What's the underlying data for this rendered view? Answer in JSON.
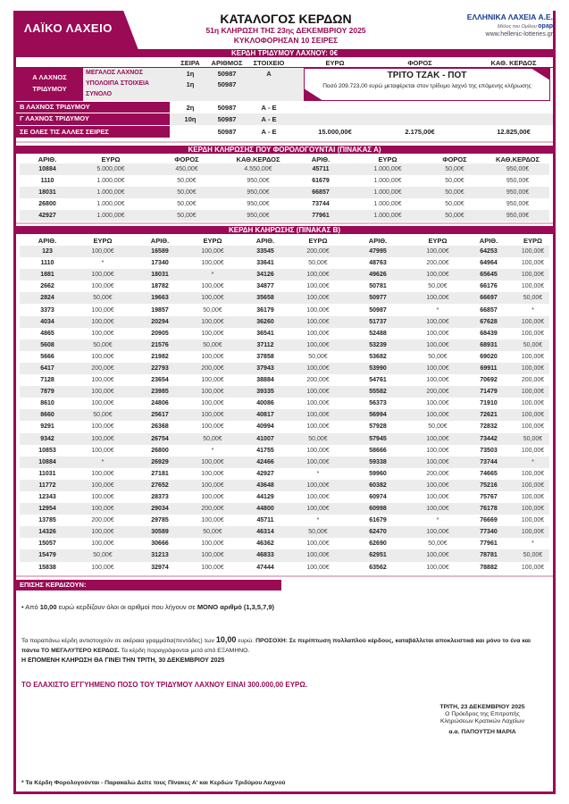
{
  "header": {
    "logo": "ΛΑΪΚΟ ΛΑΧΕΙΟ",
    "title": "ΚΑΤΑΛΟΓΟΣ ΚΕΡΔΩΝ",
    "draw": "51η ΚΛΗΡΩΣΗ ΤΗΣ 23ης ΔΕΚΕΜΒΡΙΟΥ 2025",
    "series": "ΚΥΚΛΟΦΟΡΗΣΑΝ 10 ΣΕΙΡΕΣ",
    "brand": "ΕΛΛΗΝΙΚΑ ΛΑΧΕΙΑ Α.Ε.",
    "brand_member": "Μέλος του Ομίλου",
    "brand_opap": "opap",
    "website": "www.hellenic-lotteries.gr"
  },
  "colors": {
    "accent": "#9a0a55",
    "row_alt": "#ececec"
  },
  "triplet": {
    "bar": "ΚΕΡΔΗ ΤΡΙΔΥΜΟΥ ΛΑΧΝΟΥ: 0€",
    "columns": [
      "ΣΕΙΡΑ",
      "ΑΡΙΘΜΟΣ",
      "ΣΤΟΙΧΕΙΟ",
      "ΕΥΡΩ",
      "ΦΟΡΟΣ",
      "ΚΑΘ. ΚΕΡΔΟΣ"
    ],
    "a_label": "Α ΛΑΧΝΟΣ ΤΡΙΔΥΜΟΥ",
    "a_rows": [
      {
        "label": "ΜΕΓΑΛΟΣ ΛΑΧΝΟΣ",
        "series": "1η",
        "number": "50987",
        "element": "Α"
      },
      {
        "label": "ΥΠΟΛΟΙΠΑ ΣΤΟΙΧΕΙΑ",
        "series": "1η",
        "number": "50987",
        "element": ""
      },
      {
        "label": "ΣΥΝΟΛΟ",
        "series": "",
        "number": "",
        "element": ""
      }
    ],
    "jackpot_title": "ΤΡΙΤΟ ΤΖΑΚ - ΠΟΤ",
    "jackpot_text": "Ποσό 209.723,00 ευρώ μεταφέρεται στον τρίδυμο λαχνό της επόμενης κλήρωσης",
    "b": {
      "label": "Β ΛΑΧΝΟΣ ΤΡΙΔΥΜΟΥ",
      "series": "2η",
      "number": "50987",
      "element": "Α - Ε"
    },
    "c": {
      "label": "Γ ΛΑΧΝΟΣ ΤΡΙΔΥΜΟΥ",
      "series": "10η",
      "number": "50987",
      "element": "Α - Ε"
    },
    "all": {
      "label": "ΣΕ ΟΛΕΣ ΤΙΣ ΑΛΛΕΣ ΣΕΙΡΕΣ",
      "series": "",
      "number": "50987",
      "element": "Α - Ε",
      "euro": "15.000,00€",
      "tax": "2.175,00€",
      "net": "12.825,00€"
    }
  },
  "table_a": {
    "title": "ΚΕΡΔΗ ΚΛΗΡΩΣΗΣ ΠΟΥ ΦΟΡΟΛΟΓΟΥΝΤΑΙ (ΠΙΝΑΚΑΣ Α)",
    "columns": [
      "ΑΡΙΘ.",
      "ΕΥΡΩ",
      "ΦΟΡΟΣ",
      "ΚΑΘ.ΚΕΡΔΟΣ",
      "ΑΡΙΘ.",
      "ΕΥΡΩ",
      "ΦΟΡΟΣ",
      "ΚΑΘ.ΚΕΡΔΟΣ"
    ],
    "rows": [
      [
        "10884",
        "5.000,00€",
        "450,00€",
        "4.550,00€",
        "45711",
        "1.000,00€",
        "50,00€",
        "950,00€"
      ],
      [
        "1110",
        "1.000,00€",
        "50,00€",
        "950,00€",
        "61679",
        "1.000,00€",
        "50,00€",
        "950,00€"
      ],
      [
        "18031",
        "1.000,00€",
        "50,00€",
        "950,00€",
        "66857",
        "1.000,00€",
        "50,00€",
        "950,00€"
      ],
      [
        "26800",
        "1.000,00€",
        "50,00€",
        "950,00€",
        "73744",
        "1.000,00€",
        "50,00€",
        "950,00€"
      ],
      [
        "42927",
        "1.000,00€",
        "50,00€",
        "950,00€",
        "77961",
        "1.000,00€",
        "50,00€",
        "950,00€"
      ]
    ]
  },
  "table_b": {
    "title": "ΚΕΡΔΗ ΚΛΗΡΩΣΗΣ (ΠΙΝΑΚΑΣ Β)",
    "columns": [
      "ΑΡΙΘ.",
      "ΕΥΡΩ",
      "ΑΡΙΘ.",
      "ΕΥΡΩ",
      "ΑΡΙΘ.",
      "ΕΥΡΩ",
      "ΑΡΙΘ.",
      "ΕΥΡΩ",
      "ΑΡΙΘ.",
      "ΕΥΡΩ"
    ],
    "rows": [
      [
        "123",
        "100,00€",
        "16589",
        "100,00€",
        "33545",
        "200,00€",
        "47995",
        "100,00€",
        "64253",
        "100,00€"
      ],
      [
        "1110",
        "*",
        "17340",
        "100,00€",
        "33641",
        "50,00€",
        "48763",
        "200,00€",
        "64964",
        "100,00€"
      ],
      [
        "1881",
        "100,00€",
        "18031",
        "*",
        "34126",
        "100,00€",
        "49626",
        "100,00€",
        "65645",
        "100,00€"
      ],
      [
        "2662",
        "100,00€",
        "18782",
        "100,00€",
        "34877",
        "100,00€",
        "50781",
        "50,00€",
        "66176",
        "100,00€"
      ],
      [
        "2824",
        "50,00€",
        "19663",
        "100,00€",
        "35658",
        "100,00€",
        "50977",
        "100,00€",
        "66697",
        "50,00€"
      ],
      [
        "3373",
        "100,00€",
        "19857",
        "50,00€",
        "36179",
        "100,00€",
        "50987",
        "*",
        "66857",
        "*"
      ],
      [
        "4034",
        "100,00€",
        "20294",
        "100,00€",
        "36260",
        "100,00€",
        "51737",
        "100,00€",
        "67628",
        "100,00€"
      ],
      [
        "4865",
        "100,00€",
        "20905",
        "100,00€",
        "36541",
        "100,00€",
        "52488",
        "100,00€",
        "68439",
        "100,00€"
      ],
      [
        "5608",
        "50,00€",
        "21576",
        "50,00€",
        "37112",
        "100,00€",
        "53239",
        "100,00€",
        "68931",
        "50,00€"
      ],
      [
        "5666",
        "100,00€",
        "21982",
        "100,00€",
        "37858",
        "50,00€",
        "53682",
        "50,00€",
        "69020",
        "100,00€"
      ],
      [
        "6417",
        "200,00€",
        "22793",
        "200,00€",
        "37943",
        "100,00€",
        "53990",
        "100,00€",
        "69911",
        "100,00€"
      ],
      [
        "7128",
        "100,00€",
        "23654",
        "100,00€",
        "38884",
        "200,00€",
        "54761",
        "100,00€",
        "70692",
        "200,00€"
      ],
      [
        "7879",
        "100,00€",
        "23985",
        "100,00€",
        "39335",
        "100,00€",
        "55582",
        "200,00€",
        "71479",
        "100,00€"
      ],
      [
        "8610",
        "100,00€",
        "24806",
        "100,00€",
        "40086",
        "100,00€",
        "56373",
        "100,00€",
        "71910",
        "100,00€"
      ],
      [
        "8660",
        "50,00€",
        "25617",
        "100,00€",
        "40817",
        "100,00€",
        "56994",
        "100,00€",
        "72621",
        "100,00€"
      ],
      [
        "9291",
        "100,00€",
        "26368",
        "100,00€",
        "40994",
        "100,00€",
        "57928",
        "50,00€",
        "72832",
        "100,00€"
      ],
      [
        "9342",
        "100,00€",
        "26754",
        "50,00€",
        "41007",
        "50,00€",
        "57945",
        "100,00€",
        "73442",
        "50,00€"
      ],
      [
        "10853",
        "100,00€",
        "26800",
        "*",
        "41755",
        "100,00€",
        "58666",
        "100,00€",
        "73503",
        "100,00€"
      ],
      [
        "10884",
        "*",
        "26929",
        "100,00€",
        "42466",
        "100,00€",
        "59338",
        "100,00€",
        "73744",
        "*"
      ],
      [
        "11031",
        "100,00€",
        "27181",
        "100,00€",
        "42927",
        "*",
        "59960",
        "200,00€",
        "74665",
        "100,00€"
      ],
      [
        "11772",
        "100,00€",
        "27652",
        "100,00€",
        "43648",
        "100,00€",
        "60382",
        "100,00€",
        "75216",
        "100,00€"
      ],
      [
        "12343",
        "100,00€",
        "28373",
        "100,00€",
        "44129",
        "100,00€",
        "60974",
        "100,00€",
        "75767",
        "100,00€"
      ],
      [
        "12954",
        "100,00€",
        "29034",
        "200,00€",
        "44800",
        "100,00€",
        "60998",
        "100,00€",
        "76178",
        "100,00€"
      ],
      [
        "13785",
        "200,00€",
        "29785",
        "100,00€",
        "45711",
        "*",
        "61679",
        "*",
        "76669",
        "100,00€"
      ],
      [
        "14326",
        "100,00€",
        "30589",
        "50,00€",
        "46314",
        "50,00€",
        "62470",
        "100,00€",
        "77340",
        "100,00€"
      ],
      [
        "15057",
        "100,00€",
        "30666",
        "100,00€",
        "46362",
        "100,00€",
        "62690",
        "50,00€",
        "77961",
        "*"
      ],
      [
        "15479",
        "50,00€",
        "31213",
        "100,00€",
        "46833",
        "100,00€",
        "62951",
        "100,00€",
        "78781",
        "50,00€"
      ],
      [
        "15838",
        "100,00€",
        "32974",
        "100,00€",
        "47444",
        "100,00€",
        "63562",
        "100,00€",
        "78882",
        "100,00€"
      ]
    ]
  },
  "also": {
    "bar": "ΕΠΙΣΗΣ ΚΕΡΔΙΖΟΥΝ:",
    "bullet_pre": "• Από ",
    "bullet_amount": "10,00",
    "bullet_mid": " ευρώ κερδίζουν όλοι οι αριθμοί που λήγουν σε ",
    "bullet_bold": "ΜΟΝΟ αριθμό (1,3,5,7,9)"
  },
  "notes": {
    "p1": "Τα παραπάνω κέρδη αντιστοιχούν σε ακέραια γραμμάτια(πεντάδες) των ",
    "p1_amount": "10,00",
    "p1_b": " ευρώ. ",
    "p1_bold": "ΠΡΟΣΟΧΗ: Σε περίπτωση πολλαπλού κέρδους, καταβάλλεται αποκλειστικά και  μόνο το ένα και πάντα ΤΟ ΜΕΓΑΛΥΤΕΡΟ ΚΕΡΔΟΣ.",
    "p1_end": " Τα κέρδη παραγράφονται μετά από ΕΞΑΜΗΝΟ.",
    "next_draw": "Η ΕΠΟΜΕΝΗ ΚΛΗΡΩΣΗ ΘΑ ΓΙΝΕΙ ΤΗΝ ΤΡΙΤΗ, 30 ΔΕΚΕΜΒΡΙΟΥ 2025",
    "minimum": "ΤΟ ΕΛΑΧΙΣΤΟ ΕΓΓΥΗΜΕΝΟ ΠΟΣΟ ΤΟΥ ΤΡΙΔΥΜΟΥ ΛΑΧΝΟΥ ΕΙΝΑΙ 300.000,00 ΕΥΡΩ."
  },
  "signature": {
    "date": "ΤΡΙΤΗ, 23 ΔΕΚΕΜΒΡΙΟΥ 2025",
    "line1": "Ο Πρόεδρος της Επιτροπής",
    "line2": "Κληρώσεων Κρατικών Λαχείων",
    "name": "α.α. ΠΑΠΟΥΤΣΗ ΜΑΡΙΑ"
  },
  "footnote": "* Τα Κέρδη Φορολογούνται - Παρακαλώ Δείτε τους Πίνακες Α' και  Κερδών Τριδύμου Λαχνού"
}
